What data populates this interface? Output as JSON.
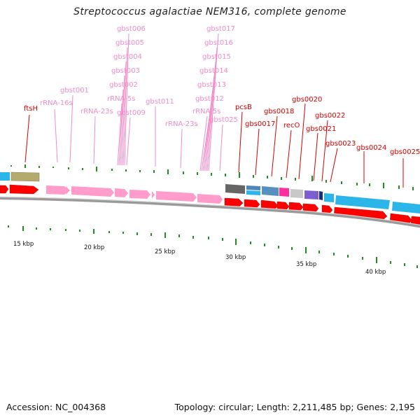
{
  "title": "Streptococcus agalactiae NEM316, complete genome",
  "footer": {
    "accession": "Accession: NC_004368",
    "summary": "Topology: circular; Length: 2,211,485 bp; Genes: 2,195"
  },
  "colors": {
    "pink_label": "#f08cc8",
    "red_label": "#d40000",
    "red_feature": "#ff0000",
    "pink_feature": "#ff9ccc",
    "cyan_feature": "#2bb5e8",
    "olive_feature": "#b5aa6e",
    "tick": "#228b22",
    "backbone": "#888888"
  },
  "scale_labels": [
    "15 kbp",
    "20 kbp",
    "25 kbp",
    "30 kbp",
    "35 kbp",
    "40 kbp"
  ],
  "feature_labels": [
    {
      "text": "ftsH",
      "kind": "red"
    },
    {
      "text": "rRNA-16s",
      "kind": "pink"
    },
    {
      "text": "gbst001",
      "kind": "pink"
    },
    {
      "text": "rRNA-23s",
      "kind": "pink"
    },
    {
      "text": "gbst006",
      "kind": "pink"
    },
    {
      "text": "gbst005",
      "kind": "pink"
    },
    {
      "text": "gbst004",
      "kind": "pink"
    },
    {
      "text": "gbst003",
      "kind": "pink"
    },
    {
      "text": "gbst002",
      "kind": "pink"
    },
    {
      "text": "rRNA-5s",
      "kind": "pink"
    },
    {
      "text": "gbst009",
      "kind": "pink"
    },
    {
      "text": "gbst011",
      "kind": "pink"
    },
    {
      "text": "rRNA-23s",
      "kind": "pink"
    },
    {
      "text": "gbst017",
      "kind": "pink"
    },
    {
      "text": "gbst016",
      "kind": "pink"
    },
    {
      "text": "gbst015",
      "kind": "pink"
    },
    {
      "text": "gbst014",
      "kind": "pink"
    },
    {
      "text": "gbst013",
      "kind": "pink"
    },
    {
      "text": "gbst012",
      "kind": "pink"
    },
    {
      "text": "rRNA-5s",
      "kind": "pink"
    },
    {
      "text": "gbst025",
      "kind": "pink"
    },
    {
      "text": "pcsB",
      "kind": "red"
    },
    {
      "text": "gbs0017",
      "kind": "red"
    },
    {
      "text": "gbs0018",
      "kind": "red"
    },
    {
      "text": "recO",
      "kind": "red"
    },
    {
      "text": "gbs0020",
      "kind": "red"
    },
    {
      "text": "gbs0021",
      "kind": "red"
    },
    {
      "text": "gbs0022",
      "kind": "red"
    },
    {
      "text": "gbs0023",
      "kind": "red"
    },
    {
      "text": "gbs0024",
      "kind": "red"
    },
    {
      "text": "gbs0025",
      "kind": "red"
    }
  ]
}
